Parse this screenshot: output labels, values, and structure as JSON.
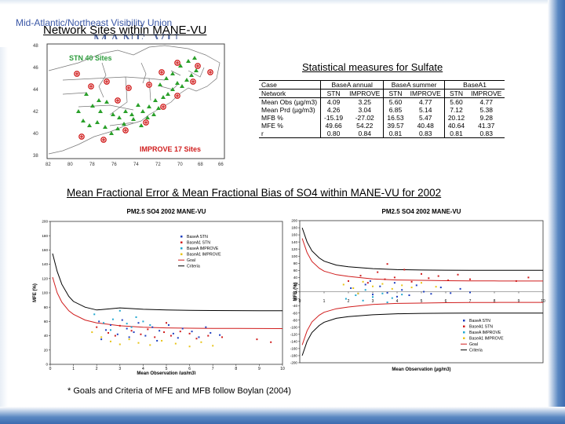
{
  "org_header": "Mid-Atlantic/Northeast Visibility Union",
  "logo_text": "MANE-VU",
  "map_title": "Network Sites within MANE-VU",
  "map": {
    "stn_label": "STN 40 Sites",
    "improve_label": "IMPROVE 17 Sites",
    "lat_ticks": [
      "48",
      "46",
      "44",
      "42",
      "40",
      "38"
    ],
    "lon_ticks": [
      "82",
      "80",
      "78",
      "76",
      "74",
      "72",
      "70",
      "68",
      "66"
    ],
    "colors": {
      "stn": "#2aa02a",
      "improve": "#d01c1c",
      "label_stn": "#2d9c3c",
      "label_improve": "#d01c1c"
    }
  },
  "table_title": "Statistical measures for Sulfate",
  "stats_table": {
    "header": [
      "Case",
      "BaseA annual",
      "BaseA summer",
      "BaseA1"
    ],
    "rows": [
      [
        "Network",
        "STN",
        "IMPROVE",
        "STN",
        "IMPROVE",
        "STN",
        "IMPROVE"
      ],
      [
        "Mean Obs (µg/m3)",
        "4.09",
        "3.25",
        "5.60",
        "4.77",
        "5.60",
        "4.77"
      ],
      [
        "Mean Prd (µg/m3)",
        "4.26",
        "3.04",
        "6.85",
        "5.14",
        "7.12",
        "5.38"
      ],
      [
        "MFB %",
        "-15.19",
        "-27.02",
        "16.53",
        "5.47",
        "20.12",
        "9.28"
      ],
      [
        "MFE %",
        "49.66",
        "54.22",
        "39.57",
        "40.48",
        "40.64",
        "41.37"
      ],
      [
        "r",
        "0.80",
        "0.84",
        "0.81",
        "0.83",
        "0.81",
        "0.83"
      ]
    ]
  },
  "section_title": "Mean Fractional Error & Mean Fractional Bias of SO4 within MANE-VU for 2002",
  "footnote": "* Goals and Criteria of MFE and MFB follow Boylan  (2004)",
  "chart_data": [
    {
      "type": "scatter",
      "title": "PM2.5 SO4    2002    MANE-VU",
      "xlabel": "Mean Observation (µg/m3)",
      "ylabel": "MFE (%)",
      "xlim": [
        0,
        10
      ],
      "ylim": [
        0,
        200
      ],
      "x_ticks": [
        "0",
        "1",
        "2",
        "3",
        "4",
        "5",
        "6",
        "7",
        "8",
        "9",
        "10"
      ],
      "y_ticks": [
        "0",
        "20",
        "40",
        "60",
        "80",
        "100",
        "120",
        "140",
        "160",
        "180",
        "200"
      ],
      "legend_position": "upper-right",
      "legend": [
        "BaseA STN",
        "BaseA1 STN",
        "BaseA IMPROVE",
        "BaseA1 IMPROVE",
        "Goal",
        "Criteria"
      ],
      "series": [
        {
          "name": "BaseA STN",
          "color": "#1f3fbf",
          "points": [
            [
              2.1,
              60
            ],
            [
              2.4,
              48
            ],
            [
              2.6,
              55
            ],
            [
              2.9,
              42
            ],
            [
              3.1,
              62
            ],
            [
              3.3,
              50
            ],
            [
              3.6,
              45
            ],
            [
              3.8,
              58
            ],
            [
              4.1,
              40
            ],
            [
              4.4,
              52
            ],
            [
              4.7,
              47
            ],
            [
              5.1,
              55
            ],
            [
              5.3,
              43
            ],
            [
              5.7,
              50
            ],
            [
              6.1,
              46
            ],
            [
              6.4,
              38
            ],
            [
              6.9,
              44
            ],
            [
              7.3,
              41
            ],
            [
              2.2,
              35
            ],
            [
              3.4,
              38
            ],
            [
              4.6,
              33
            ],
            [
              5.5,
              37
            ],
            [
              6.7,
              52
            ]
          ]
        },
        {
          "name": "BaseA1 STN",
          "color": "#d01c1c",
          "points": [
            [
              2.0,
              52
            ],
            [
              2.5,
              44
            ],
            [
              2.8,
              40
            ],
            [
              3.0,
              54
            ],
            [
              3.5,
              47
            ],
            [
              3.9,
              42
            ],
            [
              4.2,
              49
            ],
            [
              4.5,
              38
            ],
            [
              4.9,
              45
            ],
            [
              5.2,
              40
            ],
            [
              5.6,
              46
            ],
            [
              6.0,
              43
            ],
            [
              6.3,
              36
            ],
            [
              6.8,
              40
            ],
            [
              7.4,
              38
            ],
            [
              8.9,
              35
            ],
            [
              9.5,
              31
            ],
            [
              5.0,
              58
            ]
          ]
        },
        {
          "name": "BaseA IMPROVE",
          "color": "#1fa7d0",
          "points": [
            [
              1.9,
              70
            ],
            [
              2.3,
              58
            ],
            [
              2.7,
              63
            ],
            [
              3.0,
              75
            ],
            [
              3.3,
              57
            ],
            [
              3.7,
              66
            ],
            [
              4.0,
              60
            ],
            [
              4.3,
              55
            ],
            [
              2.6,
              48
            ],
            [
              3.5,
              52
            ]
          ]
        },
        {
          "name": "BaseA1 IMPROVE",
          "color": "#e8c418",
          "points": [
            [
              1.8,
              45
            ],
            [
              2.2,
              38
            ],
            [
              2.6,
              32
            ],
            [
              3.0,
              28
            ],
            [
              3.4,
              35
            ],
            [
              3.8,
              30
            ],
            [
              4.3,
              27
            ],
            [
              4.8,
              33
            ],
            [
              5.4,
              29
            ],
            [
              6.0,
              25
            ],
            [
              6.5,
              31
            ],
            [
              7.0,
              26
            ]
          ]
        }
      ],
      "curves": [
        {
          "name": "Goal",
          "color": "#d01c1c",
          "x": [
            0.1,
            0.3,
            0.5,
            0.8,
            1,
            1.5,
            2,
            3,
            4,
            5,
            6,
            7,
            8,
            9,
            10
          ],
          "y": [
            122,
            100,
            87,
            75,
            70,
            62,
            58,
            54,
            52,
            51,
            50.5,
            50.3,
            50.2,
            50.1,
            50
          ]
        },
        {
          "name": "Criteria",
          "color": "#000000",
          "x": [
            0.1,
            0.3,
            0.5,
            0.8,
            1,
            1.5,
            2,
            3,
            4,
            5,
            6,
            7,
            8,
            9,
            10
          ],
          "y": [
            155,
            130,
            112,
            95,
            88,
            80,
            76,
            79,
            77,
            76,
            75.5,
            75.3,
            75.2,
            75.1,
            75
          ]
        }
      ]
    },
    {
      "type": "scatter",
      "title": "PM2.5 SO4    2002    MANE-VU",
      "xlabel": "Mean Observation (µg/m3)",
      "ylabel": "MFB (%)",
      "xlim": [
        0,
        10
      ],
      "ylim": [
        -200,
        200
      ],
      "x_ticks": [
        "0",
        "1",
        "2",
        "3",
        "4",
        "5",
        "6",
        "7",
        "8",
        "9",
        "10"
      ],
      "y_ticks": [
        "200",
        "180",
        "160",
        "140",
        "120",
        "100",
        "80",
        "60",
        "40",
        "20",
        "0",
        "-20",
        "-40",
        "-60",
        "-80",
        "-100",
        "-120",
        "-140",
        "-160",
        "-180",
        "-200"
      ],
      "legend_position": "lower-right",
      "legend": [
        "BaseA STN",
        "BaseA1 STN",
        "BaseA IMPROVE",
        "BaseA1 IMPROVE",
        "Goal",
        "Criteria"
      ],
      "series": [
        {
          "name": "BaseA STN",
          "color": "#1f3fbf",
          "points": [
            [
              2.1,
              10
            ],
            [
              2.4,
              -5
            ],
            [
              2.7,
              20
            ],
            [
              3.0,
              -8
            ],
            [
              3.3,
              15
            ],
            [
              3.6,
              -3
            ],
            [
              3.9,
              25
            ],
            [
              4.2,
              5
            ],
            [
              4.5,
              -10
            ],
            [
              4.8,
              18
            ],
            [
              5.1,
              0
            ],
            [
              5.4,
              -6
            ],
            [
              5.8,
              12
            ],
            [
              6.2,
              -4
            ],
            [
              6.6,
              8
            ],
            [
              7.0,
              -2
            ],
            [
              2.9,
              30
            ],
            [
              4.0,
              -14
            ]
          ]
        },
        {
          "name": "BaseA1 STN",
          "color": "#d01c1c",
          "points": [
            [
              2.0,
              30
            ],
            [
              2.5,
              45
            ],
            [
              2.8,
              25
            ],
            [
              3.2,
              55
            ],
            [
              3.5,
              35
            ],
            [
              3.9,
              40
            ],
            [
              4.3,
              62
            ],
            [
              4.6,
              28
            ],
            [
              5.0,
              50
            ],
            [
              5.3,
              38
            ],
            [
              5.7,
              44
            ],
            [
              6.1,
              32
            ],
            [
              6.5,
              48
            ],
            [
              7.0,
              35
            ],
            [
              8.9,
              30
            ],
            [
              9.4,
              40
            ],
            [
              3.6,
              78
            ]
          ]
        },
        {
          "name": "BaseA IMPROVE",
          "color": "#1fa7d0",
          "points": [
            [
              1.9,
              -20
            ],
            [
              2.3,
              -10
            ],
            [
              2.6,
              -25
            ],
            [
              3.0,
              -15
            ],
            [
              3.4,
              -5
            ],
            [
              3.8,
              -18
            ],
            [
              4.2,
              -8
            ],
            [
              2.7,
              5
            ],
            [
              3.6,
              -30
            ]
          ]
        },
        {
          "name": "BaseA1 IMPROVE",
          "color": "#e8c418",
          "points": [
            [
              1.8,
              20
            ],
            [
              2.2,
              10
            ],
            [
              2.6,
              28
            ],
            [
              3.0,
              15
            ],
            [
              3.4,
              22
            ],
            [
              3.8,
              8
            ],
            [
              4.2,
              18
            ],
            [
              4.6,
              12
            ],
            [
              5.0,
              25
            ],
            [
              5.6,
              14
            ],
            [
              2.4,
              -5
            ]
          ]
        }
      ],
      "curves": [
        {
          "name": "Goal (upper)",
          "color": "#d01c1c",
          "x": [
            0.1,
            0.3,
            0.5,
            0.8,
            1,
            1.5,
            2,
            3,
            4,
            5,
            6,
            7,
            8,
            9,
            10
          ],
          "y": [
            150,
            110,
            85,
            66,
            58,
            48,
            43,
            36,
            33,
            32,
            31,
            30.5,
            30.3,
            30.1,
            30
          ]
        },
        {
          "name": "Goal (lower)",
          "color": "#d01c1c",
          "x": [
            0.1,
            0.3,
            0.5,
            0.8,
            1,
            1.5,
            2,
            3,
            4,
            5,
            6,
            7,
            8,
            9,
            10
          ],
          "y": [
            -150,
            -110,
            -85,
            -66,
            -58,
            -48,
            -43,
            -36,
            -33,
            -32,
            -31,
            -30.5,
            -30.3,
            -30.1,
            -30
          ]
        },
        {
          "name": "Criteria (upper)",
          "color": "#000000",
          "x": [
            0.1,
            0.3,
            0.5,
            0.8,
            1,
            1.5,
            2,
            3,
            4,
            5,
            6,
            7,
            8,
            9,
            10
          ],
          "y": [
            180,
            140,
            115,
            95,
            86,
            75,
            70,
            65,
            62,
            61,
            60.5,
            60.3,
            60.2,
            60.1,
            60
          ]
        },
        {
          "name": "Criteria (lower)",
          "color": "#000000",
          "x": [
            0.1,
            0.3,
            0.5,
            0.8,
            1,
            1.5,
            2,
            3,
            4,
            5,
            6,
            7,
            8,
            9,
            10
          ],
          "y": [
            -180,
            -140,
            -115,
            -95,
            -86,
            -75,
            -70,
            -65,
            -62,
            -61,
            -60.5,
            -60.3,
            -60.2,
            -60.1,
            -60
          ]
        }
      ]
    }
  ]
}
